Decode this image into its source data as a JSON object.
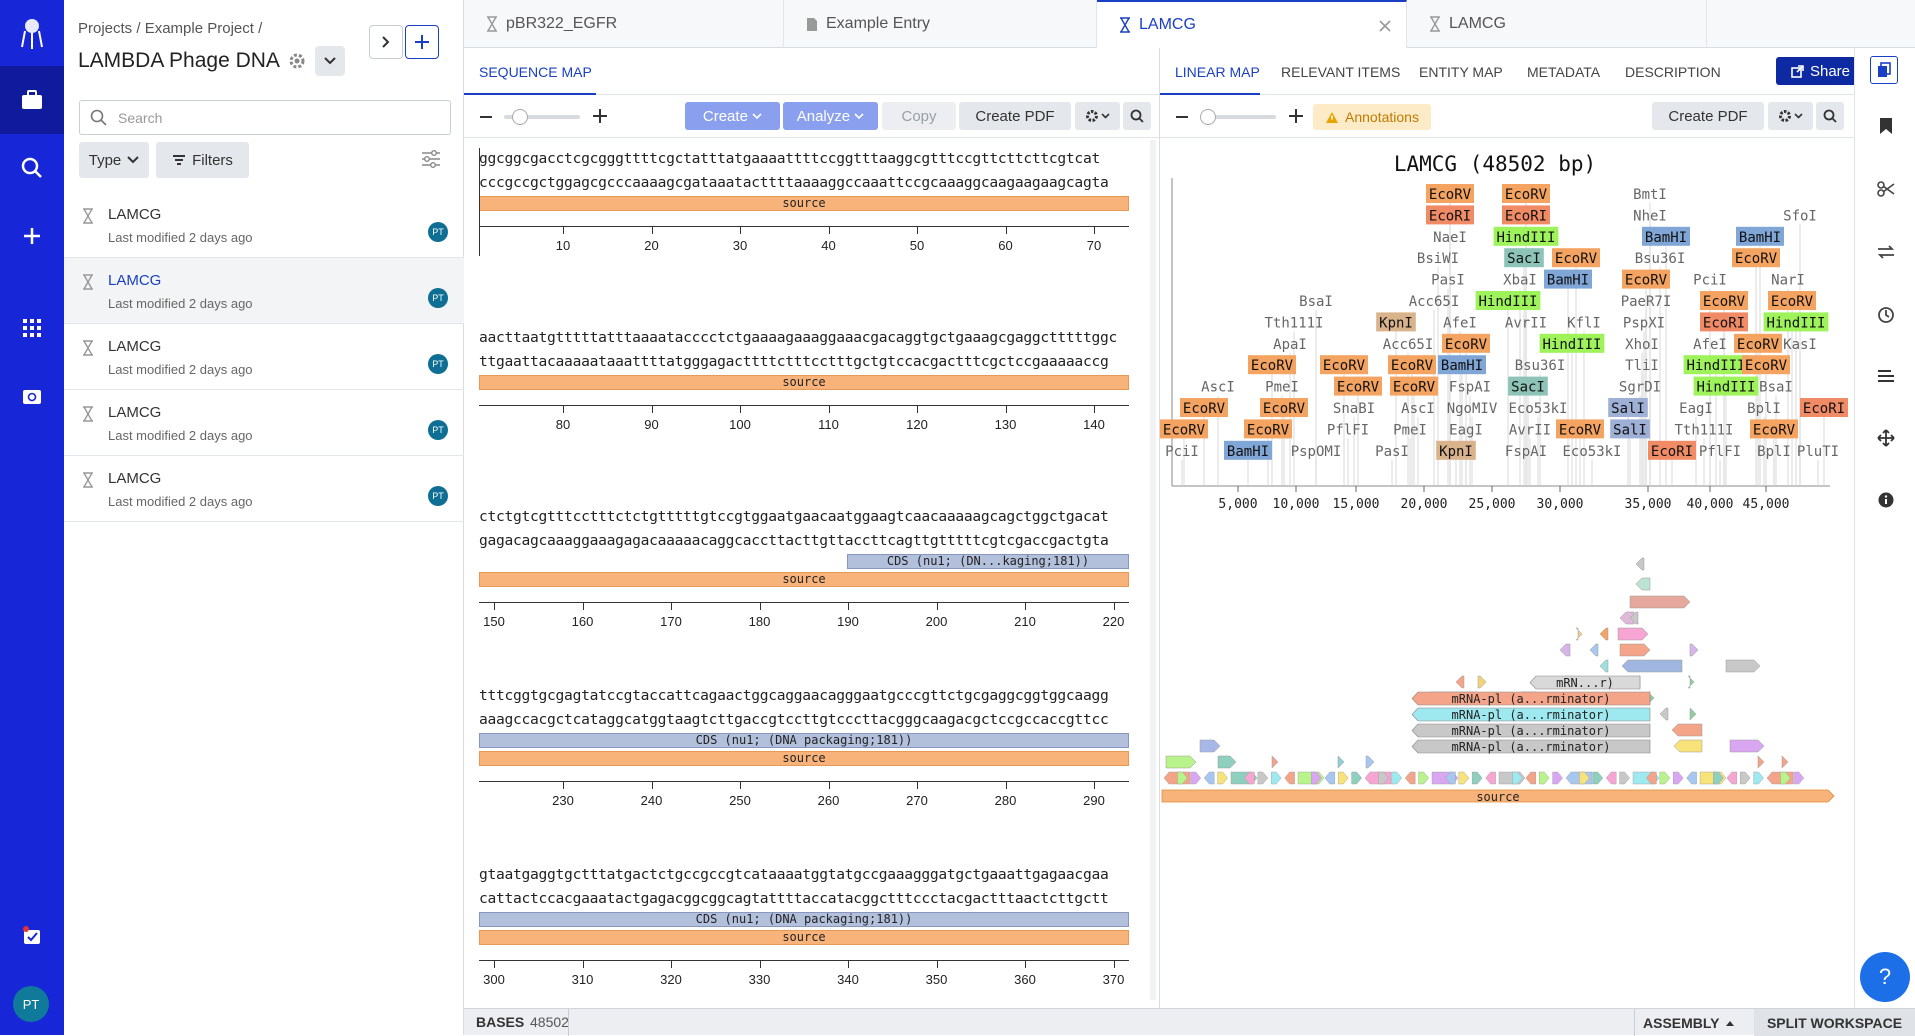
{
  "breadcrumb": [
    "Projects",
    "/",
    "Example Project",
    "/"
  ],
  "project_title": "LAMBDA Phage DNA",
  "sidebar": {
    "search_placeholder": "Search",
    "type_label": "Type",
    "filters_label": "Filters",
    "items": [
      {
        "name": "LAMCG",
        "modified": "Last modified 2 days ago",
        "initials": "PT"
      },
      {
        "name": "LAMCG",
        "modified": "Last modified 2 days ago",
        "initials": "PT"
      },
      {
        "name": "LAMCG",
        "modified": "Last modified 2 days ago",
        "initials": "PT"
      },
      {
        "name": "LAMCG",
        "modified": "Last modified 2 days ago",
        "initials": "PT"
      },
      {
        "name": "LAMCG",
        "modified": "Last modified 2 days ago",
        "initials": "PT"
      }
    ]
  },
  "user_initials": "PT",
  "tabs": [
    {
      "label": "pBR322_EGFR",
      "icon": "dna-icon"
    },
    {
      "label": "Example Entry",
      "icon": "document-icon"
    },
    {
      "label": "LAMCG",
      "icon": "dna-icon"
    },
    {
      "label": "LAMCG",
      "icon": "dna-icon"
    }
  ],
  "left_panel": {
    "tab": "SEQUENCE MAP",
    "toolbar": {
      "create": "Create",
      "analyze": "Analyze",
      "copy": "Copy",
      "create_pdf": "Create PDF"
    },
    "blocks": [
      {
        "top": "ggcggcgacctcgcgggttttcgctatttatgaaaattttccggtttaaggcgtttccgttcttcttcgtcat",
        "bottom": "cccgccgctggagcgcccaaaagcgataaatacttttaaaaggccaaattccgcaaaggcaagaagaagcagta",
        "features": [
          {
            "label": "source",
            "kind": "source"
          }
        ],
        "ticks": [
          "10",
          "20",
          "30",
          "40",
          "50",
          "60",
          "70"
        ]
      },
      {
        "top": "aacttaatgtttttatttaaaatacccctctgaaaagaaaggaaacgacaggtgctgaaagcgaggctttttggc",
        "bottom": "ttgaattacaaaaataaattttatgggagacttttctttcctttgctgtccacgactttcgctccgaaaaaccg",
        "features": [
          {
            "label": "source",
            "kind": "source"
          }
        ],
        "ticks": [
          "80",
          "90",
          "100",
          "110",
          "120",
          "130",
          "140"
        ]
      },
      {
        "top": "ctctgtcgtttcctttctctgtttttgtccgtggaatgaacaatggaagtcaacaaaaagcagctggctgacat",
        "bottom": "gagacagcaaaggaaagagacaaaaacaggcaccttacttgttaccttcagttgtttttcgtcgaccgactgta",
        "features": [
          {
            "label": "CDS (nu1; (DN...kaging;181))",
            "kind": "cds_partial"
          },
          {
            "label": "source",
            "kind": "source"
          }
        ],
        "ticks": [
          "150",
          "160",
          "170",
          "180",
          "190",
          "200",
          "210",
          "220"
        ]
      },
      {
        "top": "tttcggtgcgagtatccgtaccattcagaactggcaggaacagggaatgcccgttctgcgaggcggtggcaagg",
        "bottom": "aaagccacgctcataggcatggtaagtcttgaccgtccttgtcccttacgggcaagacgctccgccaccgttcc",
        "features": [
          {
            "label": "CDS (nu1; (DNA packaging;181))",
            "kind": "cds"
          },
          {
            "label": "source",
            "kind": "source"
          }
        ],
        "ticks": [
          "230",
          "240",
          "250",
          "260",
          "270",
          "280",
          "290"
        ]
      },
      {
        "top": "gtaatgaggtgctttatgactctgccgccgtcataaaatggtatgccgaaagggatgctgaaattgagaacgaa",
        "bottom": "cattactccacgaaatactgagacggcggcagtattttaccatacggctttccctacgactttaactcttgctt",
        "features": [
          {
            "label": "CDS (nu1; (DNA packaging;181))",
            "kind": "cds"
          },
          {
            "label": "source",
            "kind": "source"
          }
        ],
        "ticks": [
          "300",
          "310",
          "320",
          "330",
          "340",
          "350",
          "360",
          "370"
        ]
      }
    ]
  },
  "right_panel": {
    "tabs": [
      "LINEAR MAP",
      "RELEVANT ITEMS",
      "ENTITY MAP",
      "METADATA",
      "DESCRIPTION"
    ],
    "share": "Share",
    "annotations": "Annotations",
    "create_pdf": "Create PDF",
    "map_title": "LAMCG (48502 bp)",
    "axis_ticks": [
      "5,000",
      "10,000",
      "15,000",
      "20,000",
      "25,000",
      "30,000",
      "35,000",
      "40,000",
      "45,000"
    ],
    "enzymes": [
      {
        "t": "EcoRV",
        "c": "#f4a460"
      },
      {
        "t": "EcoRV",
        "c": "#f4a460"
      },
      {
        "t": "BmtI",
        "c": ""
      },
      {
        "t": "EcoRI",
        "c": "#f08b65"
      },
      {
        "t": "EcoRI",
        "c": "#f08b65"
      },
      {
        "t": "NheI",
        "c": ""
      },
      {
        "t": "SfoI",
        "c": ""
      },
      {
        "t": "NaeI",
        "c": ""
      },
      {
        "t": "HindIII",
        "c": "#9ef25a"
      },
      {
        "t": "BamHI",
        "c": "#7fa6d6"
      },
      {
        "t": "BamHI",
        "c": "#7fa6d6"
      },
      {
        "t": "BsiWI",
        "c": ""
      },
      {
        "t": "SacI",
        "c": "#8ec3b8"
      },
      {
        "t": "EcoRV",
        "c": "#f4a460"
      },
      {
        "t": "Bsu36I",
        "c": ""
      },
      {
        "t": "EcoRV",
        "c": "#f4a460"
      },
      {
        "t": "PasI",
        "c": ""
      },
      {
        "t": "XbaI",
        "c": ""
      },
      {
        "t": "BamHI",
        "c": "#7fa6d6"
      },
      {
        "t": "EcoRV",
        "c": "#f4a460"
      },
      {
        "t": "PciI",
        "c": ""
      },
      {
        "t": "NarI",
        "c": ""
      },
      {
        "t": "BsaI",
        "c": ""
      },
      {
        "t": "Acc65I",
        "c": ""
      },
      {
        "t": "HindIII",
        "c": "#9ef25a"
      },
      {
        "t": "PaeR7I",
        "c": ""
      },
      {
        "t": "EcoRV",
        "c": "#f4a460"
      },
      {
        "t": "EcoRV",
        "c": "#f4a460"
      },
      {
        "t": "Tth111I",
        "c": ""
      },
      {
        "t": "KpnI",
        "c": "#d9b38c"
      },
      {
        "t": "AfeI",
        "c": ""
      },
      {
        "t": "AvrII",
        "c": ""
      },
      {
        "t": "KflI",
        "c": ""
      },
      {
        "t": "PspXI",
        "c": ""
      },
      {
        "t": "EcoRI",
        "c": "#f08b65"
      },
      {
        "t": "HindIII",
        "c": "#9ef25a"
      },
      {
        "t": "ApaI",
        "c": ""
      },
      {
        "t": "Acc65I",
        "c": ""
      },
      {
        "t": "EcoRV",
        "c": "#f4a460"
      },
      {
        "t": "HindIII",
        "c": "#9ef25a"
      },
      {
        "t": "XhoI",
        "c": ""
      },
      {
        "t": "AfeI",
        "c": ""
      },
      {
        "t": "EcoRV",
        "c": "#f4a460"
      },
      {
        "t": "KasI",
        "c": ""
      },
      {
        "t": "EcoRV",
        "c": "#f4a460"
      },
      {
        "t": "EcoRV",
        "c": "#f4a460"
      },
      {
        "t": "EcoRV",
        "c": "#f4a460"
      },
      {
        "t": "BamHI",
        "c": "#7fa6d6"
      },
      {
        "t": "Bsu36I",
        "c": ""
      },
      {
        "t": "TliI",
        "c": ""
      },
      {
        "t": "HindIII",
        "c": "#9ef25a"
      },
      {
        "t": "EcoRV",
        "c": "#f4a460"
      },
      {
        "t": "AscI",
        "c": ""
      },
      {
        "t": "PmeI",
        "c": ""
      },
      {
        "t": "EcoRV",
        "c": "#f4a460"
      },
      {
        "t": "EcoRV",
        "c": "#f4a460"
      },
      {
        "t": "FspAI",
        "c": ""
      },
      {
        "t": "SacI",
        "c": "#8ec3b8"
      },
      {
        "t": "SgrDI",
        "c": ""
      },
      {
        "t": "HindIII",
        "c": "#9ef25a"
      },
      {
        "t": "BsaI",
        "c": ""
      },
      {
        "t": "EcoRV",
        "c": "#f4a460"
      },
      {
        "t": "EcoRV",
        "c": "#f4a460"
      },
      {
        "t": "SnaBI",
        "c": ""
      },
      {
        "t": "AscI",
        "c": ""
      },
      {
        "t": "NgoMIV",
        "c": ""
      },
      {
        "t": "Eco53kI",
        "c": ""
      },
      {
        "t": "SalI",
        "c": "#9fb0d6"
      },
      {
        "t": "EagI",
        "c": ""
      },
      {
        "t": "BplI",
        "c": ""
      },
      {
        "t": "EcoRI",
        "c": "#f08b65"
      },
      {
        "t": "EcoRV",
        "c": "#f4a460"
      },
      {
        "t": "EcoRV",
        "c": "#f4a460"
      },
      {
        "t": "PflFI",
        "c": ""
      },
      {
        "t": "PmeI",
        "c": ""
      },
      {
        "t": "EagI",
        "c": ""
      },
      {
        "t": "AvrII",
        "c": ""
      },
      {
        "t": "EcoRV",
        "c": "#f4a460"
      },
      {
        "t": "SalI",
        "c": "#9fb0d6"
      },
      {
        "t": "Tth111I",
        "c": ""
      },
      {
        "t": "EcoRV",
        "c": "#f4a460"
      },
      {
        "t": "PciI",
        "c": ""
      },
      {
        "t": "BamHI",
        "c": "#7fa6d6"
      },
      {
        "t": "PspOMI",
        "c": ""
      },
      {
        "t": "PasI",
        "c": ""
      },
      {
        "t": "KpnI",
        "c": "#d9b38c"
      },
      {
        "t": "FspAI",
        "c": ""
      },
      {
        "t": "Eco53kI",
        "c": ""
      },
      {
        "t": "EcoRI",
        "c": "#f08b65"
      },
      {
        "t": "PflFI",
        "c": ""
      },
      {
        "t": "BplI",
        "c": ""
      },
      {
        "t": "PluTI",
        "c": ""
      }
    ],
    "mrna_labels": [
      "mRN...r)",
      "mRNA-pl (a...rminator)",
      "mRNA-pl (a...rminator)",
      "mRNA-pl (a...rminator)",
      "mRNA-pl (a...rminator)"
    ],
    "source_label": "source"
  },
  "status": {
    "bases_label": "BASES",
    "bases_value": "48502",
    "assembly": "ASSEMBLY",
    "split": "SPLIT WORKSPACE"
  },
  "colors": {
    "rail": "#1726d6",
    "accent": "#1a3fc4",
    "source": "#f8b37a",
    "cds": "#b3c0dc",
    "create": "#8aa0ee"
  }
}
